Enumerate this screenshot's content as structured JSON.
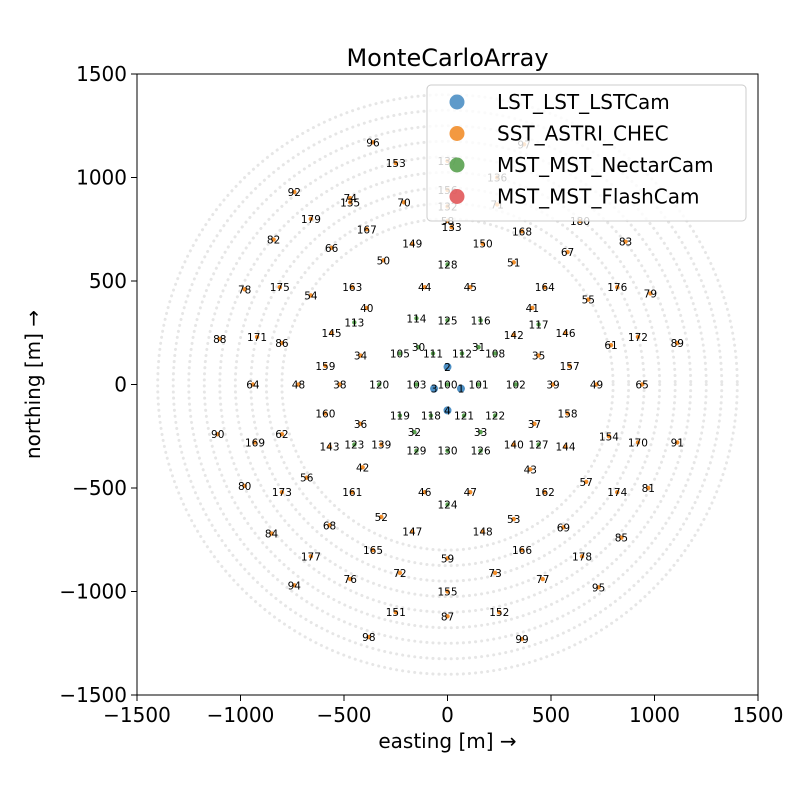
{
  "chart_data": {
    "type": "scatter",
    "title": "MonteCarloArray",
    "xlabel": "easting [m] →",
    "ylabel": "northing [m] →",
    "xlim": [
      -1500,
      1500
    ],
    "ylim": [
      -1500,
      1500
    ],
    "xticks": [
      -1500,
      -1000,
      -500,
      0,
      500,
      1000,
      1500
    ],
    "yticks": [
      -1500,
      -1000,
      -500,
      0,
      500,
      1000,
      1500
    ],
    "xtick_labels": [
      "−1500",
      "−1000",
      "−500",
      "0",
      "500",
      "1000",
      "1500"
    ],
    "ytick_labels": [
      "−1500",
      "−1000",
      "−500",
      "0",
      "500",
      "1000",
      "1500"
    ],
    "grid": false,
    "legend_position": "top-right",
    "background_rings": {
      "color": "#e6e6e6",
      "radii": [
        800,
        875,
        950,
        1025,
        1100,
        1175,
        1250,
        1325,
        1400
      ]
    },
    "series": [
      {
        "name": "LST_LST_LSTCam",
        "color": "#4c8fc4",
        "points": [
          {
            "id": "1",
            "x": 65,
            "y": -20
          },
          {
            "id": "2",
            "x": 0,
            "y": 85
          },
          {
            "id": "3",
            "x": -65,
            "y": -20
          },
          {
            "id": "4",
            "x": 0,
            "y": -125
          }
        ]
      },
      {
        "name": "SST_ASTRI_CHEC",
        "color": "#f28e2b",
        "points": [
          {
            "id": "70",
            "x": -210,
            "y": 880
          },
          {
            "id": "71",
            "x": 240,
            "y": 870
          },
          {
            "id": "97",
            "x": 370,
            "y": 1160
          },
          {
            "id": "96",
            "x": -360,
            "y": 1170
          },
          {
            "id": "153",
            "x": -250,
            "y": 1070
          },
          {
            "id": "92",
            "x": -740,
            "y": 930
          },
          {
            "id": "74",
            "x": -470,
            "y": 900
          },
          {
            "id": "179",
            "x": -660,
            "y": 800
          },
          {
            "id": "82",
            "x": -840,
            "y": 700
          },
          {
            "id": "66",
            "x": -560,
            "y": 660
          },
          {
            "id": "167",
            "x": -390,
            "y": 750
          },
          {
            "id": "149",
            "x": -170,
            "y": 680
          },
          {
            "id": "50",
            "x": -310,
            "y": 600
          },
          {
            "id": "150",
            "x": 170,
            "y": 680
          },
          {
            "id": "168",
            "x": 360,
            "y": 740
          },
          {
            "id": "180",
            "x": 640,
            "y": 790
          },
          {
            "id": "83",
            "x": 860,
            "y": 690
          },
          {
            "id": "67",
            "x": 580,
            "y": 640
          },
          {
            "id": "51",
            "x": 320,
            "y": 590
          },
          {
            "id": "78",
            "x": -980,
            "y": 460
          },
          {
            "id": "175",
            "x": -810,
            "y": 470
          },
          {
            "id": "54",
            "x": -660,
            "y": 430
          },
          {
            "id": "163",
            "x": -460,
            "y": 470
          },
          {
            "id": "40",
            "x": -390,
            "y": 370
          },
          {
            "id": "44",
            "x": -110,
            "y": 470
          },
          {
            "id": "45",
            "x": 110,
            "y": 470
          },
          {
            "id": "164",
            "x": 470,
            "y": 470
          },
          {
            "id": "41",
            "x": 410,
            "y": 370
          },
          {
            "id": "55",
            "x": 680,
            "y": 410
          },
          {
            "id": "176",
            "x": 820,
            "y": 470
          },
          {
            "id": "79",
            "x": 980,
            "y": 440
          },
          {
            "id": "88",
            "x": -1100,
            "y": 220
          },
          {
            "id": "171",
            "x": -920,
            "y": 230
          },
          {
            "id": "86",
            "x": -800,
            "y": 200
          },
          {
            "id": "145",
            "x": -560,
            "y": 250
          },
          {
            "id": "34",
            "x": -420,
            "y": 140
          },
          {
            "id": "159",
            "x": -590,
            "y": 90
          },
          {
            "id": "142",
            "x": 320,
            "y": 240
          },
          {
            "id": "35",
            "x": 440,
            "y": 140
          },
          {
            "id": "146",
            "x": 570,
            "y": 250
          },
          {
            "id": "157",
            "x": 590,
            "y": 90
          },
          {
            "id": "61",
            "x": 790,
            "y": 190
          },
          {
            "id": "172",
            "x": 920,
            "y": 230
          },
          {
            "id": "89",
            "x": 1110,
            "y": 200
          },
          {
            "id": "64",
            "x": -940,
            "y": 0
          },
          {
            "id": "48",
            "x": -720,
            "y": 0
          },
          {
            "id": "38",
            "x": -520,
            "y": 0
          },
          {
            "id": "39",
            "x": 510,
            "y": 0
          },
          {
            "id": "49",
            "x": 720,
            "y": 0
          },
          {
            "id": "65",
            "x": 940,
            "y": 0
          },
          {
            "id": "160",
            "x": -590,
            "y": -140
          },
          {
            "id": "36",
            "x": -420,
            "y": -190
          },
          {
            "id": "37",
            "x": 420,
            "y": -190
          },
          {
            "id": "158",
            "x": 580,
            "y": -140
          },
          {
            "id": "90",
            "x": -1110,
            "y": -240
          },
          {
            "id": "169",
            "x": -930,
            "y": -280
          },
          {
            "id": "62",
            "x": -800,
            "y": -240
          },
          {
            "id": "143",
            "x": -570,
            "y": -300
          },
          {
            "id": "139",
            "x": -320,
            "y": -290
          },
          {
            "id": "140",
            "x": 320,
            "y": -290
          },
          {
            "id": "144",
            "x": 570,
            "y": -300
          },
          {
            "id": "154",
            "x": 780,
            "y": -250
          },
          {
            "id": "170",
            "x": 920,
            "y": -280
          },
          {
            "id": "91",
            "x": 1110,
            "y": -280
          },
          {
            "id": "80",
            "x": -980,
            "y": -490
          },
          {
            "id": "173",
            "x": -800,
            "y": -520
          },
          {
            "id": "56",
            "x": -680,
            "y": -450
          },
          {
            "id": "161",
            "x": -460,
            "y": -520
          },
          {
            "id": "42",
            "x": -410,
            "y": -400
          },
          {
            "id": "46",
            "x": -110,
            "y": -520
          },
          {
            "id": "47",
            "x": 110,
            "y": -520
          },
          {
            "id": "162",
            "x": 470,
            "y": -520
          },
          {
            "id": "43",
            "x": 400,
            "y": -410
          },
          {
            "id": "57",
            "x": 670,
            "y": -470
          },
          {
            "id": "174",
            "x": 820,
            "y": -520
          },
          {
            "id": "81",
            "x": 970,
            "y": -500
          },
          {
            "id": "84",
            "x": -850,
            "y": -720
          },
          {
            "id": "68",
            "x": -570,
            "y": -680
          },
          {
            "id": "52",
            "x": -320,
            "y": -640
          },
          {
            "id": "147",
            "x": -170,
            "y": -710
          },
          {
            "id": "148",
            "x": 170,
            "y": -710
          },
          {
            "id": "53",
            "x": 320,
            "y": -650
          },
          {
            "id": "69",
            "x": 560,
            "y": -690
          },
          {
            "id": "85",
            "x": 840,
            "y": -740
          },
          {
            "id": "177",
            "x": -660,
            "y": -830
          },
          {
            "id": "165",
            "x": -360,
            "y": -800
          },
          {
            "id": "59",
            "x": 0,
            "y": -840
          },
          {
            "id": "166",
            "x": 360,
            "y": -800
          },
          {
            "id": "178",
            "x": 650,
            "y": -830
          },
          {
            "id": "94",
            "x": -740,
            "y": -970
          },
          {
            "id": "76",
            "x": -470,
            "y": -940
          },
          {
            "id": "72",
            "x": -230,
            "y": -910
          },
          {
            "id": "73",
            "x": 230,
            "y": -910
          },
          {
            "id": "77",
            "x": 460,
            "y": -940
          },
          {
            "id": "95",
            "x": 730,
            "y": -980
          },
          {
            "id": "155",
            "x": 0,
            "y": -1000
          },
          {
            "id": "151",
            "x": -250,
            "y": -1100
          },
          {
            "id": "152",
            "x": 250,
            "y": -1100
          },
          {
            "id": "87",
            "x": 0,
            "y": -1120
          },
          {
            "id": "98",
            "x": -380,
            "y": -1220
          },
          {
            "id": "99",
            "x": 360,
            "y": -1230
          },
          {
            "id": "135",
            "x": -470,
            "y": 880
          },
          {
            "id": "132",
            "x": 0,
            "y": 860
          },
          {
            "id": "58",
            "x": 0,
            "y": 790
          },
          {
            "id": "133",
            "x": 20,
            "y": 760
          },
          {
            "id": "156",
            "x": 0,
            "y": 940
          },
          {
            "id": "136",
            "x": 240,
            "y": 1000
          },
          {
            "id": "137",
            "x": 0,
            "y": 1080
          }
        ]
      },
      {
        "name": "MST_MST_NectarCam",
        "color": "#59a14f",
        "points": [
          {
            "id": "128",
            "x": 0,
            "y": 580
          },
          {
            "id": "114",
            "x": -150,
            "y": 320
          },
          {
            "id": "125",
            "x": 0,
            "y": 310
          },
          {
            "id": "116",
            "x": 160,
            "y": 310
          },
          {
            "id": "113",
            "x": -450,
            "y": 300
          },
          {
            "id": "117",
            "x": 440,
            "y": 290
          },
          {
            "id": "30",
            "x": -140,
            "y": 180
          },
          {
            "id": "31",
            "x": 150,
            "y": 180
          },
          {
            "id": "105",
            "x": -230,
            "y": 150
          },
          {
            "id": "111",
            "x": -70,
            "y": 150
          },
          {
            "id": "112",
            "x": 70,
            "y": 150
          },
          {
            "id": "108",
            "x": 230,
            "y": 150
          },
          {
            "id": "120",
            "x": -330,
            "y": 0
          },
          {
            "id": "103",
            "x": -150,
            "y": 0
          },
          {
            "id": "100",
            "x": 0,
            "y": 0
          },
          {
            "id": "101",
            "x": 150,
            "y": 0
          },
          {
            "id": "102",
            "x": 330,
            "y": 0
          },
          {
            "id": "119",
            "x": -230,
            "y": -150
          },
          {
            "id": "118",
            "x": -80,
            "y": -150
          },
          {
            "id": "121",
            "x": 80,
            "y": -150
          },
          {
            "id": "122",
            "x": 230,
            "y": -150
          },
          {
            "id": "32",
            "x": -160,
            "y": -230
          },
          {
            "id": "33",
            "x": 160,
            "y": -230
          },
          {
            "id": "123",
            "x": -450,
            "y": -290
          },
          {
            "id": "127",
            "x": 440,
            "y": -290
          },
          {
            "id": "129",
            "x": -150,
            "y": -320
          },
          {
            "id": "130",
            "x": 0,
            "y": -320
          },
          {
            "id": "126",
            "x": 160,
            "y": -320
          },
          {
            "id": "124",
            "x": 0,
            "y": -580
          }
        ]
      },
      {
        "name": "MST_MST_FlashCam",
        "color": "#e15759",
        "points": []
      }
    ]
  }
}
